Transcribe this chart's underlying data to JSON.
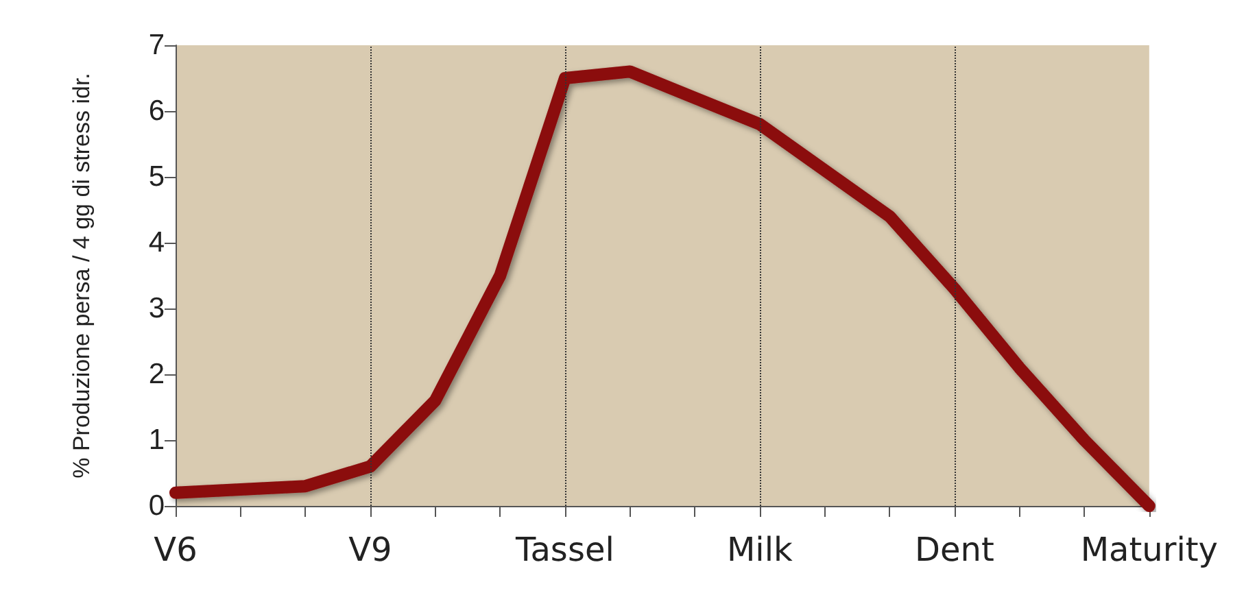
{
  "chart_data": {
    "type": "line",
    "ylabel": "% Produzione persa / 4 gg di stress idr.",
    "categories": [
      "V6",
      null,
      null,
      "V9",
      null,
      null,
      "Tassel",
      null,
      null,
      "Milk",
      null,
      null,
      "Dent",
      null,
      null,
      "Maturity"
    ],
    "series": [
      {
        "color": "#8b0a0a",
        "values": [
          0.2,
          0.25,
          0.3,
          0.6,
          1.6,
          3.5,
          6.5,
          6.6,
          6.2,
          5.8,
          5.1,
          4.4,
          3.3,
          2.1,
          1.0,
          0.0
        ]
      }
    ],
    "ylim": [
      0,
      7
    ],
    "yticks": [
      0,
      1,
      2,
      3,
      4,
      5,
      6,
      7
    ],
    "grid": false,
    "line_style": "solid",
    "ref_lines": [
      {
        "axis": "x",
        "value": "V9",
        "color": "#333333",
        "line_style": "dotted"
      },
      {
        "axis": "x",
        "value": "Tassel",
        "color": "#333333",
        "line_style": "dotted"
      },
      {
        "axis": "x",
        "value": "Milk",
        "color": "#333333",
        "line_style": "dotted"
      },
      {
        "axis": "x",
        "value": "Dent",
        "color": "#333333",
        "line_style": "dotted"
      }
    ]
  }
}
